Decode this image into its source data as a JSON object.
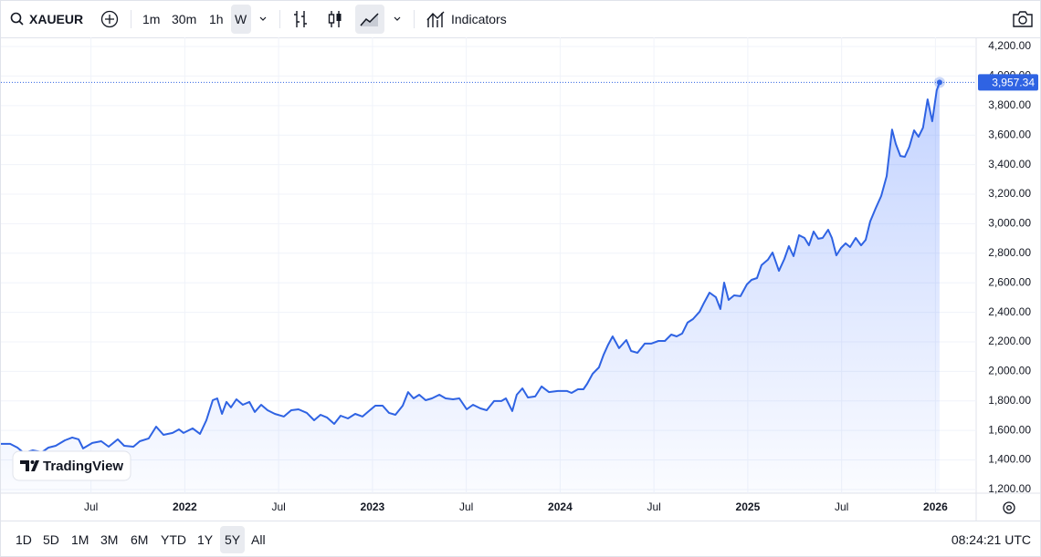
{
  "ui": {
    "symbol": "XAUEUR",
    "intervals": [
      "1m",
      "30m",
      "1h",
      "W"
    ],
    "active_interval": 3,
    "indicators": "Indicators",
    "logo": "TradingView",
    "ranges": [
      "1D",
      "5D",
      "1M",
      "3M",
      "6M",
      "YTD",
      "1Y",
      "5Y",
      "All"
    ],
    "active_range": 7,
    "clock": "08:24:21 UTC"
  },
  "chart_data": {
    "type": "area",
    "color": "#2f63e3",
    "grid": true,
    "x": [
      2021.02,
      2021.069,
      2021.108,
      2021.142,
      2021.19,
      2021.239,
      2021.273,
      2021.312,
      2021.361,
      2021.4,
      2021.434,
      2021.458,
      2021.507,
      2021.555,
      2021.594,
      2021.643,
      2021.677,
      2021.726,
      2021.76,
      2021.808,
      2021.847,
      2021.886,
      2021.935,
      2021.969,
      2021.993,
      2022.042,
      2022.081,
      2022.115,
      2022.149,
      2022.173,
      2022.198,
      2022.222,
      2022.246,
      2022.275,
      2022.309,
      2022.344,
      2022.373,
      2022.407,
      2022.441,
      2022.48,
      2022.528,
      2022.567,
      2022.606,
      2022.65,
      2022.689,
      2022.723,
      2022.757,
      2022.796,
      2022.83,
      2022.869,
      2022.908,
      2022.947,
      2022.981,
      2023.015,
      2023.054,
      2023.088,
      2023.122,
      2023.161,
      2023.19,
      2023.219,
      2023.249,
      2023.283,
      2023.317,
      2023.356,
      2023.39,
      2023.429,
      2023.463,
      2023.502,
      2023.536,
      2023.575,
      2023.609,
      2023.648,
      2023.687,
      2023.711,
      2023.745,
      2023.769,
      2023.799,
      2023.828,
      2023.867,
      2023.901,
      2023.94,
      2023.988,
      2024.037,
      2024.061,
      2024.095,
      2024.124,
      2024.144,
      2024.173,
      2024.207,
      2024.232,
      2024.256,
      2024.28,
      2024.314,
      2024.353,
      2024.378,
      2024.412,
      2024.451,
      2024.485,
      2024.524,
      2024.558,
      2024.592,
      2024.621,
      2024.65,
      2024.679,
      2024.708,
      2024.743,
      2024.767,
      2024.796,
      2024.83,
      2024.854,
      2024.874,
      2024.898,
      2024.927,
      2024.961,
      2024.995,
      2025.02,
      2025.049,
      2025.073,
      2025.107,
      2025.132,
      2025.166,
      2025.195,
      2025.219,
      2025.244,
      2025.273,
      2025.302,
      2025.326,
      2025.351,
      2025.375,
      2025.399,
      2025.428,
      2025.448,
      2025.472,
      2025.497,
      2025.521,
      2025.545,
      2025.575,
      2025.604,
      2025.628,
      2025.652,
      2025.682,
      2025.711,
      2025.74,
      2025.769,
      2025.789,
      2025.813,
      2025.837,
      2025.861,
      2025.886,
      2025.91,
      2025.934,
      2025.958,
      2025.983,
      2026.007,
      2026.022
    ],
    "values": [
      1509,
      1509,
      1484,
      1447,
      1465,
      1453,
      1484,
      1496,
      1533,
      1552,
      1540,
      1478,
      1515,
      1527,
      1490,
      1540,
      1496,
      1490,
      1527,
      1546,
      1626,
      1570,
      1583,
      1607,
      1583,
      1614,
      1577,
      1669,
      1805,
      1817,
      1712,
      1793,
      1756,
      1811,
      1774,
      1793,
      1725,
      1774,
      1737,
      1712,
      1694,
      1737,
      1743,
      1719,
      1669,
      1706,
      1688,
      1644,
      1700,
      1681,
      1712,
      1694,
      1731,
      1768,
      1768,
      1719,
      1706,
      1768,
      1860,
      1817,
      1842,
      1805,
      1817,
      1842,
      1817,
      1811,
      1817,
      1743,
      1774,
      1749,
      1737,
      1799,
      1799,
      1817,
      1731,
      1842,
      1885,
      1823,
      1830,
      1898,
      1860,
      1867,
      1867,
      1854,
      1879,
      1879,
      1916,
      1984,
      2027,
      2114,
      2181,
      2237,
      2157,
      2212,
      2138,
      2126,
      2188,
      2188,
      2206,
      2206,
      2249,
      2237,
      2256,
      2330,
      2354,
      2404,
      2465,
      2533,
      2502,
      2422,
      2601,
      2484,
      2515,
      2509,
      2589,
      2620,
      2632,
      2719,
      2756,
      2805,
      2681,
      2762,
      2848,
      2780,
      2922,
      2904,
      2854,
      2947,
      2898,
      2904,
      2959,
      2904,
      2786,
      2836,
      2867,
      2842,
      2904,
      2854,
      2891,
      3015,
      3107,
      3188,
      3323,
      3638,
      3540,
      3459,
      3453,
      3521,
      3632,
      3589,
      3651,
      3842,
      3694,
      3904,
      3957.34
    ],
    "last_price": {
      "value": 3957.34,
      "label": "3,957.34"
    },
    "xlim": [
      2021.02,
      2026.217
    ],
    "xticks": [
      {
        "value": 2021.5,
        "label": "Jul"
      },
      2022,
      {
        "value": 2022.5,
        "label": "Jul"
      },
      2023,
      {
        "value": 2023.5,
        "label": "Jul"
      },
      2024,
      {
        "value": 2024.5,
        "label": "Jul"
      },
      2025,
      {
        "value": 2025.5,
        "label": "Jul"
      },
      2026
    ],
    "ylim": [
      1175,
      4262
    ],
    "yticks": [
      {
        "value": 1200,
        "label": "1,200.00"
      },
      {
        "value": 1400,
        "label": "1,400.00"
      },
      {
        "value": 1600,
        "label": "1,600.00"
      },
      {
        "value": 1800,
        "label": "1,800.00"
      },
      {
        "value": 2000,
        "label": "2,000.00"
      },
      {
        "value": 2200,
        "label": "2,200.00"
      },
      {
        "value": 2400,
        "label": "2,400.00"
      },
      {
        "value": 2600,
        "label": "2,600.00"
      },
      {
        "value": 2800,
        "label": "2,800.00"
      },
      {
        "value": 3000,
        "label": "3,000.00"
      },
      {
        "value": 3200,
        "label": "3,200.00"
      },
      {
        "value": 3400,
        "label": "3,400.00"
      },
      {
        "value": 3600,
        "label": "3,600.00"
      },
      {
        "value": 3800,
        "label": "3,800.00"
      },
      {
        "value": 4000,
        "label": "4,000.00"
      },
      {
        "value": 4200,
        "label": "4,200.00"
      }
    ]
  }
}
